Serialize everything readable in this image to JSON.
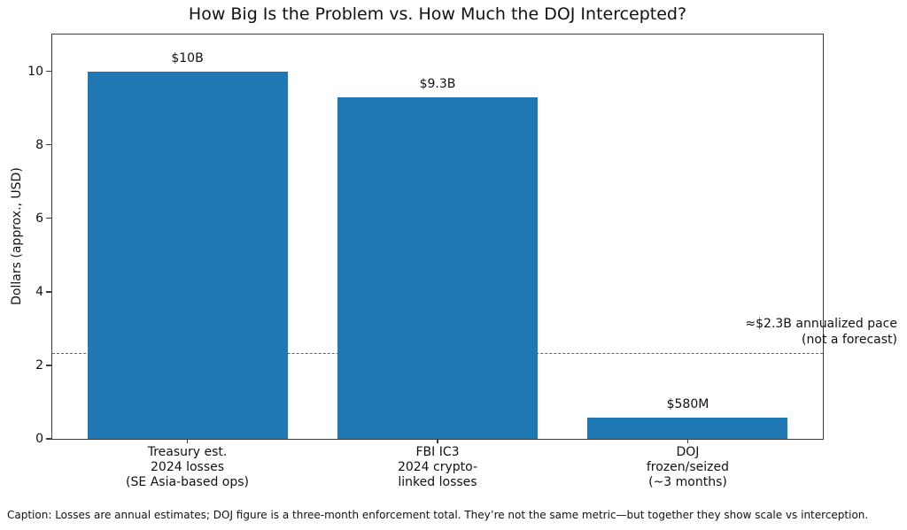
{
  "figure": {
    "caption": "Caption: Losses are annual estimates; DOJ figure is a three-month enforcement total. They’re not the same metric—but together they show scale vs interception."
  },
  "chart_data": {
    "type": "bar",
    "title": "How Big Is the Problem vs. How Much the DOJ Intercepted?",
    "xlabel": "",
    "ylabel": "Dollars (approx., USD)",
    "ylim": [
      0,
      11
    ],
    "yticks": [
      0,
      2,
      4,
      6,
      8,
      10
    ],
    "grid": false,
    "legend": false,
    "bar_color": "#1f77b4",
    "categories": [
      "Treasury est.\n2024 losses\n(SE Asia-based ops)",
      "FBI IC3\n2024 crypto-\nlinked losses",
      "DOJ\nfrozen/seized\n(~3 months)"
    ],
    "values": [
      10,
      9.3,
      0.58
    ],
    "bar_labels": [
      "$10B",
      "$9.3B",
      "$580M"
    ],
    "reference_line": {
      "value": 2.3,
      "style": "dashed",
      "color": "#1f77b4",
      "label_line1": "≈$2.3B annualized pace",
      "label_line2": "(not a forecast)"
    }
  }
}
